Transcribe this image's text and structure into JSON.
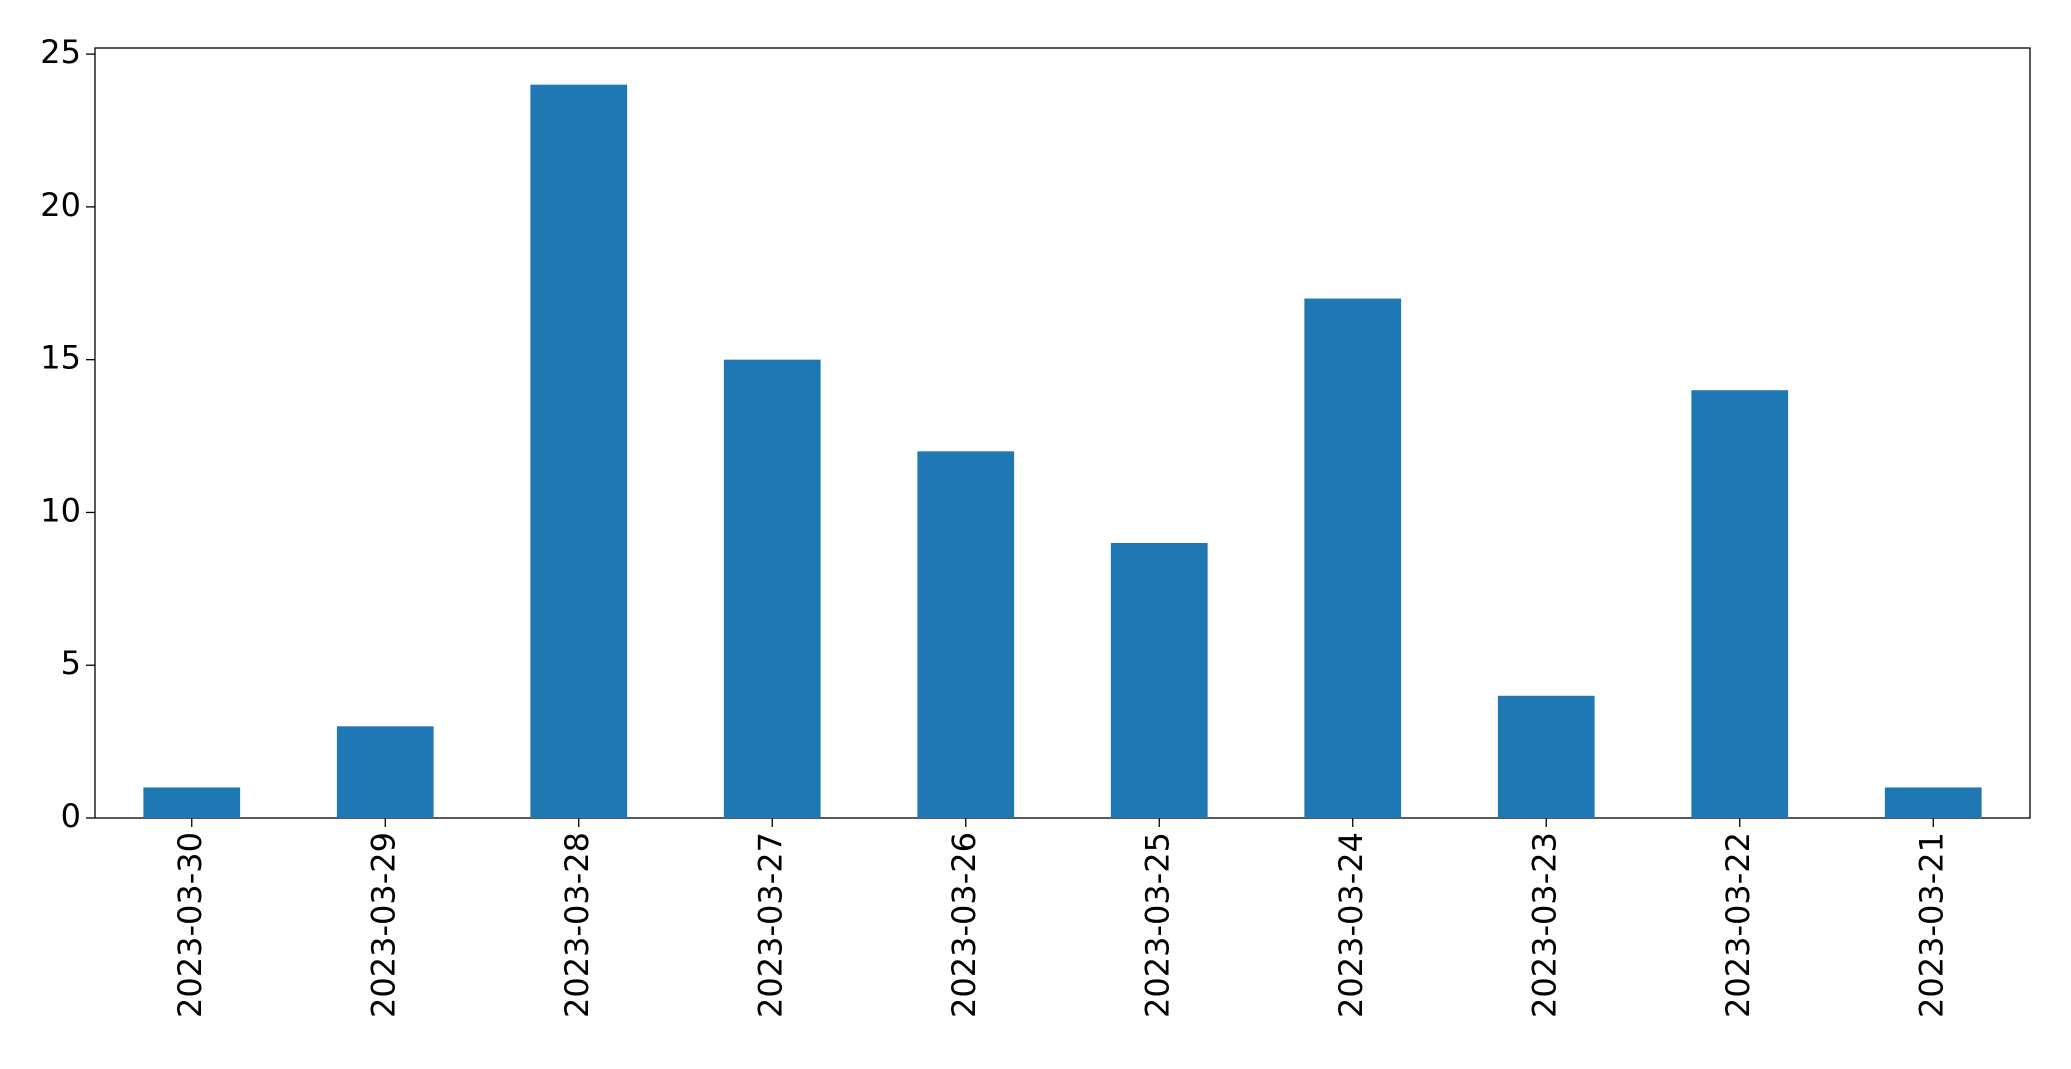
{
  "chart_data": {
    "type": "bar",
    "categories": [
      "2023-03-30",
      "2023-03-29",
      "2023-03-28",
      "2023-03-27",
      "2023-03-26",
      "2023-03-25",
      "2023-03-24",
      "2023-03-23",
      "2023-03-22",
      "2023-03-21"
    ],
    "values": [
      1,
      3,
      24,
      15,
      12,
      9,
      17,
      4,
      14,
      1
    ],
    "color": "#1f77b4",
    "ylim": [
      0,
      25.2
    ],
    "yticks": [
      0,
      5,
      10,
      15,
      20,
      25
    ],
    "grid": false
  }
}
